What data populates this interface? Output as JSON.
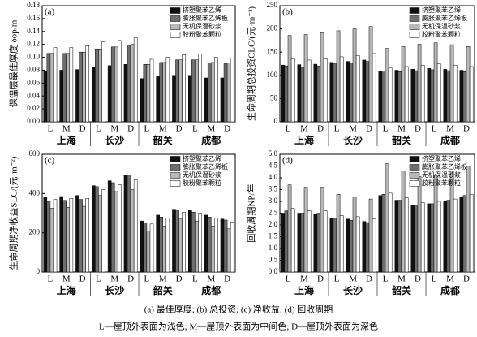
{
  "chart_data": [
    {
      "type": "bar",
      "panel": "(a)",
      "ylabel": "保温层最佳厚度 δop/m",
      "categories": [
        "L",
        "M",
        "D",
        "L",
        "M",
        "D",
        "L",
        "M",
        "D",
        "L",
        "M",
        "D"
      ],
      "groups": [
        "上海",
        "长沙",
        "韶关",
        "成都"
      ],
      "ylim": [
        0,
        0.18
      ],
      "yticks": [
        {
          "value": 0,
          "label": "0.00"
        },
        0.02,
        0.04,
        0.06,
        0.08,
        {
          "value": 0.1,
          "label": "0.10"
        },
        0.12,
        0.14,
        0.16,
        0.18
      ],
      "series": [
        {
          "name": "挤塑聚苯乙烯",
          "color": "#111111",
          "values": [
            0.079,
            0.08,
            0.081,
            0.085,
            0.087,
            0.089,
            0.067,
            0.07,
            0.072,
            0.072,
            0.068,
            0.068
          ]
        },
        {
          "name": "膨胀聚苯乙烯板",
          "color": "#6e6e6e",
          "values": [
            0.106,
            0.106,
            0.108,
            0.113,
            0.116,
            0.119,
            0.089,
            0.092,
            0.096,
            0.096,
            0.091,
            0.09
          ]
        },
        {
          "name": "无机保温砂浆",
          "color": "#b8b8b8",
          "values": [
            0.106,
            0.106,
            0.108,
            0.113,
            0.116,
            0.12,
            0.089,
            0.092,
            0.096,
            0.096,
            0.092,
            0.091
          ]
        },
        {
          "name": "胶粉聚苯颗粒",
          "color": "#ffffff",
          "values": [
            0.115,
            0.115,
            0.118,
            0.124,
            0.126,
            0.13,
            0.097,
            0.1,
            0.104,
            0.105,
            0.1,
            0.099
          ]
        }
      ]
    },
    {
      "type": "bar",
      "panel": "(b)",
      "ylabel": "生命周期总投资CLC/(元·m⁻²)",
      "categories": [
        "L",
        "M",
        "D",
        "L",
        "M",
        "D",
        "L",
        "M",
        "D",
        "L",
        "M",
        "D"
      ],
      "groups": [
        "上海",
        "长沙",
        "韶关",
        "成都"
      ],
      "ylim": [
        0,
        250
      ],
      "yticks": [
        0,
        50,
        100,
        150,
        200,
        250
      ],
      "series": [
        {
          "name": "挤塑聚苯乙烯",
          "color": "#111111",
          "values": [
            122,
            123,
            124,
            128,
            130,
            133,
            108,
            111,
            113,
            115,
            113,
            111
          ]
        },
        {
          "name": "膨胀聚苯乙烯板",
          "color": "#6e6e6e",
          "values": [
            120,
            118,
            120,
            125,
            127,
            130,
            107,
            108,
            110,
            112,
            110,
            108
          ]
        },
        {
          "name": "无机保温砂浆",
          "color": "#b8b8b8",
          "values": [
            186,
            188,
            192,
            196,
            200,
            205,
            158,
            162,
            167,
            170,
            166,
            162
          ]
        },
        {
          "name": "胶粉聚苯颗粒",
          "color": "#ffffff",
          "values": [
            135,
            133,
            136,
            140,
            143,
            147,
            116,
            119,
            122,
            125,
            122,
            119
          ]
        }
      ]
    },
    {
      "type": "bar",
      "panel": "(c)",
      "ylabel": "生命周期净收益SLC/(元·m⁻²)",
      "categories": [
        "L",
        "M",
        "D",
        "L",
        "M",
        "D",
        "L",
        "M",
        "D",
        "L",
        "M",
        "D"
      ],
      "groups": [
        "上海",
        "长沙",
        "韶关",
        "成都"
      ],
      "ylim": [
        0,
        600
      ],
      "yticks": [
        0,
        200,
        400,
        600
      ],
      "series": [
        {
          "name": "挤塑聚苯乙烯",
          "color": "#111111",
          "values": [
            380,
            385,
            390,
            440,
            465,
            495,
            260,
            290,
            320,
            315,
            290,
            270
          ]
        },
        {
          "name": "膨胀聚苯乙烯板",
          "color": "#6e6e6e",
          "values": [
            360,
            365,
            370,
            435,
            455,
            495,
            250,
            280,
            315,
            305,
            280,
            265
          ]
        },
        {
          "name": "无机保温砂浆",
          "color": "#b8b8b8",
          "values": [
            325,
            330,
            335,
            390,
            410,
            420,
            210,
            235,
            270,
            260,
            235,
            220
          ]
        },
        {
          "name": "胶粉聚苯颗粒",
          "color": "#ffffff",
          "values": [
            370,
            375,
            375,
            420,
            445,
            470,
            245,
            275,
            305,
            300,
            275,
            255
          ]
        }
      ]
    },
    {
      "type": "bar",
      "panel": "(d)",
      "ylabel": "回收周期NP/年",
      "categories": [
        "L",
        "M",
        "D",
        "L",
        "M",
        "D",
        "L",
        "M",
        "D",
        "L",
        "M",
        "D"
      ],
      "groups": [
        "上海",
        "长沙",
        "韶关",
        "成都"
      ],
      "ylim": [
        0,
        5
      ],
      "yticks": [
        {
          "value": 0,
          "label": "0.0"
        },
        0.5,
        {
          "value": 1,
          "label": "1.0"
        },
        1.5,
        {
          "value": 2,
          "label": "2.0"
        },
        2.5,
        {
          "value": 3,
          "label": "3.0"
        },
        3.5,
        {
          "value": 4,
          "label": "4.0"
        },
        4.5,
        {
          "value": 5,
          "label": "5.0"
        }
      ],
      "series": [
        {
          "name": "挤塑聚苯乙烯",
          "color": "#111111",
          "values": [
            2.5,
            2.5,
            2.45,
            2.3,
            2.25,
            2.15,
            3.25,
            3.05,
            2.85,
            2.9,
            3.0,
            3.2
          ]
        },
        {
          "name": "膨胀聚苯乙烯板",
          "color": "#6e6e6e",
          "values": [
            2.6,
            2.5,
            2.5,
            2.3,
            2.2,
            2.1,
            3.3,
            3.05,
            2.85,
            2.9,
            3.05,
            3.25
          ]
        },
        {
          "name": "无机保温砂浆",
          "color": "#b8b8b8",
          "values": [
            3.7,
            3.6,
            3.6,
            3.3,
            3.2,
            3.1,
            4.6,
            4.3,
            4.05,
            4.1,
            4.3,
            4.5
          ]
        },
        {
          "name": "胶粉聚苯颗粒",
          "color": "#ffffff",
          "values": [
            2.7,
            2.6,
            2.6,
            2.4,
            2.35,
            2.25,
            3.35,
            3.15,
            2.95,
            3.0,
            3.1,
            3.3
          ]
        }
      ]
    }
  ],
  "caption": [
    "(a) 最佳厚度; (b) 总投资; (c) 净收益; (d) 回收周期",
    "L—屋顶外表面为浅色; M—屋顶外表面为中间色; D—屋顶外表面为深色"
  ]
}
